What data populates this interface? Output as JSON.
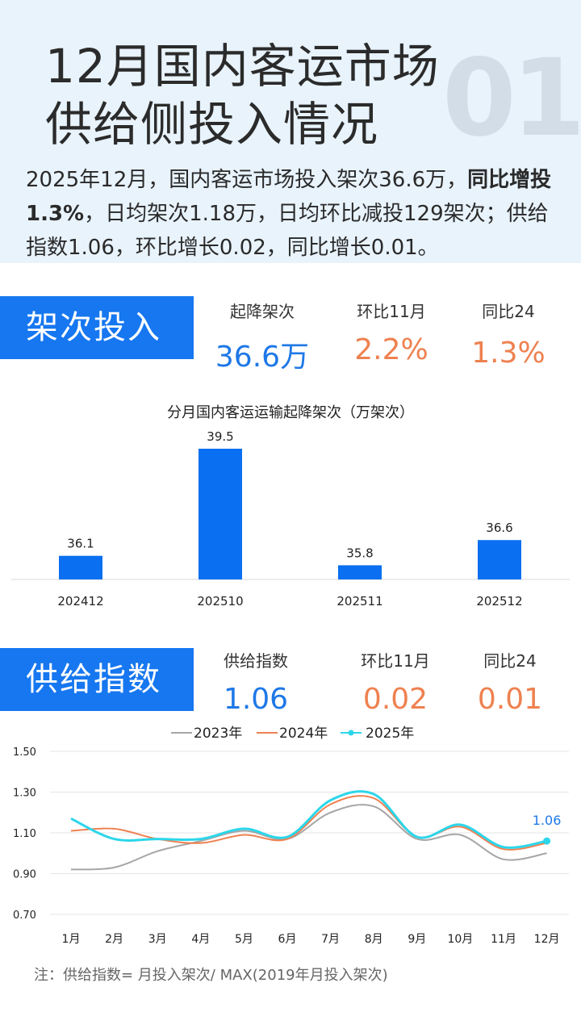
{
  "header": {
    "title": "12月国内客运市场\n供给侧投入情况",
    "bignum": "01",
    "summary_pre": "2025年12月，国内客运市场投入架次36.6万，",
    "summary_bold1": "同比增投",
    "summary_bold2": "1.3%",
    "summary_post": "，日均架次1.18万，日均环比减投129架次；供给指数1.06，环比增长0.02，同比增长0.01。"
  },
  "section1": {
    "tag": "架次投入",
    "stats": [
      {
        "label": "起降架次",
        "value": "36.6万"
      },
      {
        "label": "环比11月",
        "value": "2.2%"
      },
      {
        "label": "同比24",
        "value": "1.3%"
      }
    ]
  },
  "section2": {
    "tag": "供给指数",
    "stats": [
      {
        "label": "供给指数",
        "value": "1.06"
      },
      {
        "label": "环比11月",
        "value": "0.02"
      },
      {
        "label": "同比24",
        "value": "0.01"
      }
    ]
  },
  "footnote": "注：供给指数= 月投入架次/ MAX(2019年月投入架次)",
  "chart_data": [
    {
      "type": "bar",
      "title": "分月国内客运运输起降架次（万架次）",
      "categories": [
        "202412",
        "202510",
        "202511",
        "202512"
      ],
      "values": [
        36.1,
        39.5,
        35.8,
        36.6
      ],
      "labels": [
        "36.1",
        "39.5",
        "35.8",
        "36.6"
      ],
      "color": "#0a6ff0",
      "grid": false
    },
    {
      "type": "line",
      "categories": [
        "1月",
        "2月",
        "3月",
        "4月",
        "5月",
        "6月",
        "7月",
        "8月",
        "9月",
        "10月",
        "11月",
        "12月"
      ],
      "y_ticks": [
        "1.50",
        "1.30",
        "1.10",
        "0.90",
        "0.70"
      ],
      "ylim": [
        0.7,
        1.5
      ],
      "legend_position": "top",
      "grid": true,
      "end_label": "1.06",
      "series": [
        {
          "name": "2023年",
          "color": "#a6a6a6",
          "values": [
            0.92,
            0.93,
            1.01,
            1.06,
            1.11,
            1.07,
            1.2,
            1.23,
            1.07,
            1.09,
            0.97,
            1.0
          ]
        },
        {
          "name": "2024年",
          "color": "#ee8150",
          "values": [
            1.11,
            1.12,
            1.07,
            1.05,
            1.09,
            1.07,
            1.24,
            1.27,
            1.08,
            1.13,
            1.02,
            1.05
          ]
        },
        {
          "name": "2025年",
          "color": "#2cd6ea",
          "values": [
            1.17,
            1.07,
            1.07,
            1.07,
            1.12,
            1.08,
            1.26,
            1.29,
            1.08,
            1.14,
            1.03,
            1.06
          ]
        }
      ]
    }
  ]
}
